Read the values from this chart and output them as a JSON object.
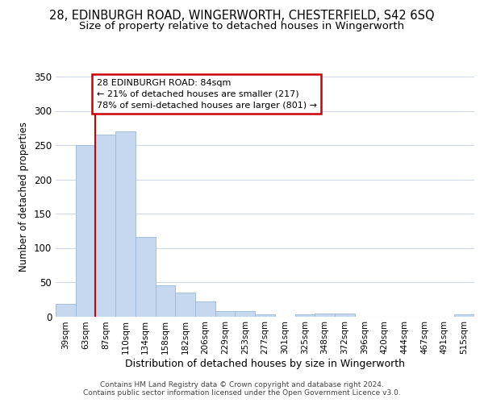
{
  "title": "28, EDINBURGH ROAD, WINGERWORTH, CHESTERFIELD, S42 6SQ",
  "subtitle": "Size of property relative to detached houses in Wingerworth",
  "xlabel": "Distribution of detached houses by size in Wingerworth",
  "ylabel": "Number of detached properties",
  "categories": [
    "39sqm",
    "63sqm",
    "87sqm",
    "110sqm",
    "134sqm",
    "158sqm",
    "182sqm",
    "206sqm",
    "229sqm",
    "253sqm",
    "277sqm",
    "301sqm",
    "325sqm",
    "348sqm",
    "372sqm",
    "396sqm",
    "420sqm",
    "444sqm",
    "467sqm",
    "491sqm",
    "515sqm"
  ],
  "values": [
    18,
    250,
    265,
    270,
    116,
    45,
    35,
    22,
    8,
    8,
    3,
    0,
    3,
    4,
    4,
    0,
    0,
    0,
    0,
    0,
    3
  ],
  "bar_color": "#c5d8f0",
  "bar_edge_color": "#9ab8d8",
  "vline_x": 2.0,
  "vline_color": "#cc0000",
  "annotation_text": "28 EDINBURGH ROAD: 84sqm\n← 21% of detached houses are smaller (217)\n78% of semi-detached houses are larger (801) →",
  "annotation_box_color": "#cc0000",
  "ylim": [
    0,
    350
  ],
  "yticks": [
    0,
    50,
    100,
    150,
    200,
    250,
    300,
    350
  ],
  "fig_background": "#ffffff",
  "plot_background": "#ffffff",
  "grid_color": "#d0d8e8",
  "footer_text": "Contains HM Land Registry data © Crown copyright and database right 2024.\nContains public sector information licensed under the Open Government Licence v3.0.",
  "title_fontsize": 10.5,
  "subtitle_fontsize": 9.5,
  "ylabel_fontsize": 8.5,
  "xlabel_fontsize": 9
}
